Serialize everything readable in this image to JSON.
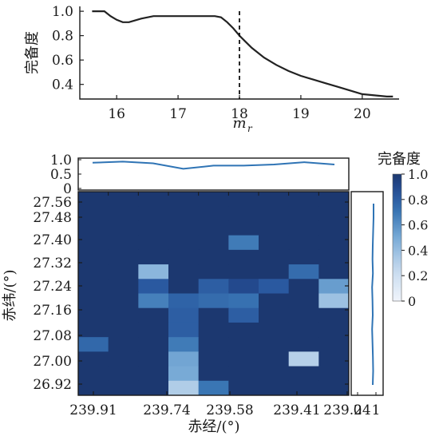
{
  "chart_data": [
    {
      "type": "line",
      "ylabel": "完备度",
      "xlabel_main": "m",
      "xlabel_sub": "r",
      "xlim": [
        15.4,
        20.6
      ],
      "ylim": [
        0.3,
        1.0
      ],
      "xticks": [
        "16",
        "17",
        "18",
        "19",
        "20"
      ],
      "yticks": [
        "0.4",
        "0.6",
        "0.8",
        "1.0"
      ],
      "vline_x": 18.0,
      "series": [
        {
          "x": [
            15.6,
            15.8,
            15.9,
            16.0,
            16.1,
            16.2,
            16.4,
            16.6,
            16.8,
            17.0,
            17.2,
            17.4,
            17.6,
            17.7,
            17.8,
            17.9,
            18.0,
            18.1,
            18.2,
            18.4,
            18.6,
            18.8,
            19.0,
            19.2,
            19.4,
            19.6,
            19.8,
            20.0,
            20.2,
            20.4,
            20.5
          ],
          "y": [
            1.0,
            1.0,
            0.96,
            0.93,
            0.91,
            0.91,
            0.94,
            0.96,
            0.96,
            0.96,
            0.96,
            0.96,
            0.96,
            0.95,
            0.91,
            0.86,
            0.8,
            0.75,
            0.7,
            0.62,
            0.56,
            0.51,
            0.47,
            0.44,
            0.41,
            0.38,
            0.35,
            0.32,
            0.31,
            0.3,
            0.3
          ]
        }
      ]
    },
    {
      "type": "heatmap",
      "xlabel": "赤经/(°)",
      "ylabel": "赤纬/(°)",
      "colorbar_label": "完备度",
      "colorbar_ticks": [
        "1.0",
        "0.8",
        "0.6",
        "0.4",
        "0.2",
        "0"
      ],
      "xticks": [
        "239.91",
        "239.74",
        "239.58",
        "239.41",
        "239.24"
      ],
      "yticks": [
        "27.56",
        "27.48",
        "27.40",
        "27.32",
        "27.24",
        "27.16",
        "27.08",
        "27.00",
        "26.92"
      ],
      "top_marginal": {
        "yticks": [
          "1.0",
          "0.5",
          "0"
        ],
        "values": [
          0.95,
          0.99,
          0.93,
          0.74,
          0.85,
          0.85,
          0.89,
          0.97,
          0.89
        ]
      },
      "right_marginal": {
        "xticks": [
          "0",
          "1"
        ],
        "values": [
          1.0,
          1.0,
          0.98,
          0.96,
          0.95,
          0.97,
          0.93,
          0.95,
          0.96,
          0.93,
          0.95,
          0.97,
          0.98,
          0.96
        ]
      },
      "grid": [
        [
          1,
          1,
          1,
          1,
          1,
          1,
          1,
          1,
          1
        ],
        [
          1,
          1,
          1,
          1,
          1,
          1,
          1,
          1,
          1
        ],
        [
          1,
          1,
          1,
          1,
          1,
          1,
          1,
          1,
          1
        ],
        [
          1,
          1,
          1,
          1,
          1,
          0.68,
          1,
          1,
          1
        ],
        [
          1,
          1,
          1,
          1,
          1,
          1,
          1,
          1,
          1
        ],
        [
          1,
          1,
          0.44,
          1,
          1,
          1,
          1,
          0.74,
          1
        ],
        [
          1,
          1,
          0.82,
          1,
          0.8,
          0.9,
          0.82,
          1,
          0.55
        ],
        [
          1,
          1,
          0.66,
          0.78,
          0.74,
          0.72,
          1,
          1,
          0.38
        ],
        [
          1,
          1,
          1,
          0.8,
          1,
          0.8,
          1,
          1,
          1
        ],
        [
          1,
          1,
          1,
          0.8,
          1,
          1,
          1,
          1,
          1
        ],
        [
          0.76,
          1,
          1,
          0.68,
          1,
          1,
          1,
          1,
          1
        ],
        [
          1,
          1,
          1,
          0.52,
          1,
          1,
          1,
          0.3,
          1
        ],
        [
          1,
          1,
          1,
          0.5,
          1,
          1,
          1,
          1,
          1
        ],
        [
          1,
          1,
          1,
          0.32,
          0.7,
          1,
          1,
          1,
          1
        ]
      ]
    }
  ]
}
